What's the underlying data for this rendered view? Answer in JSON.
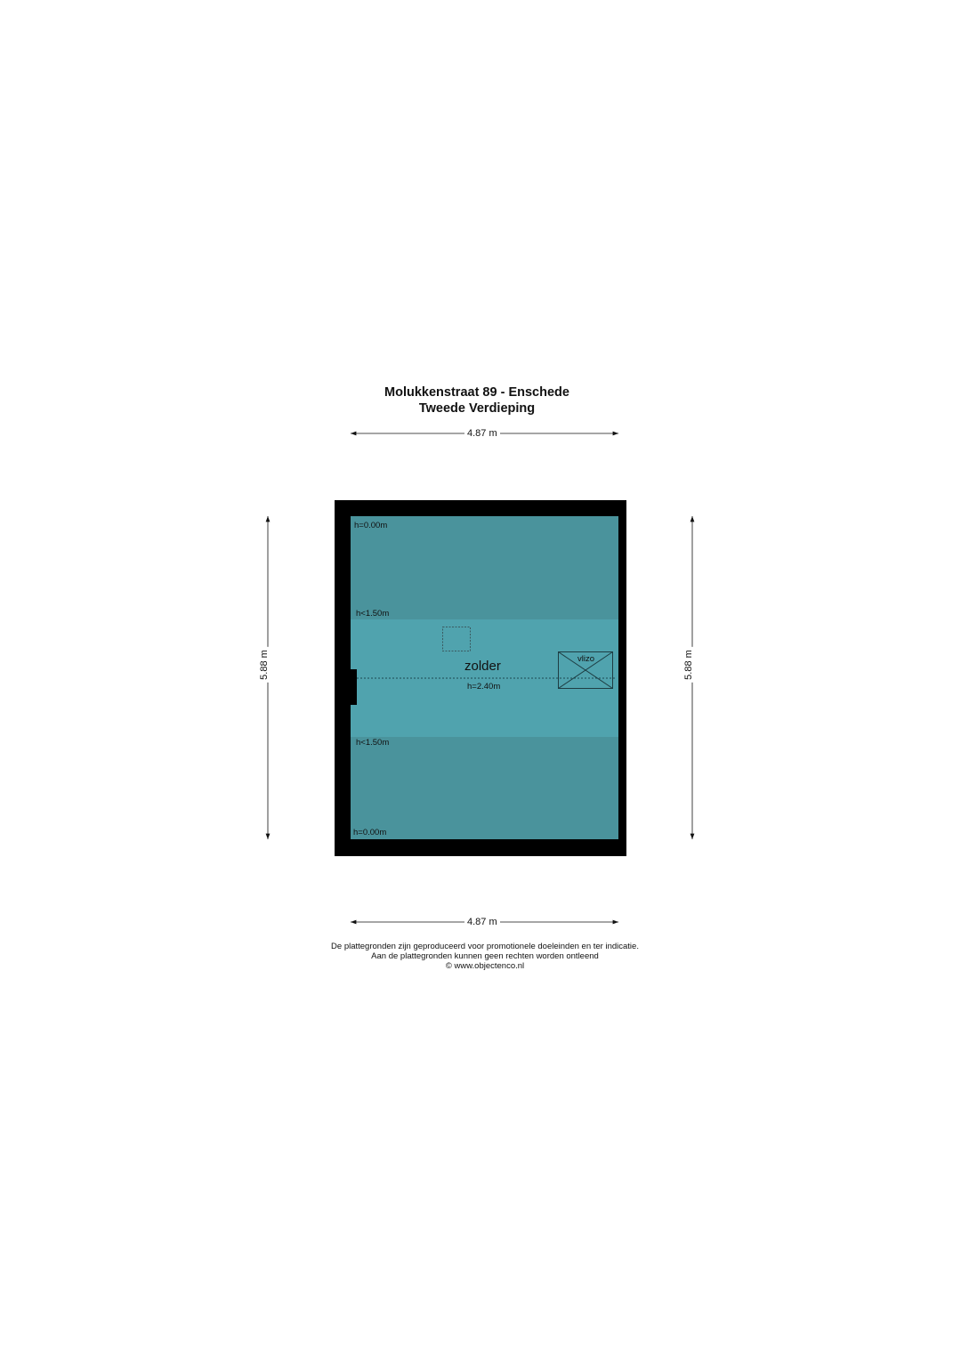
{
  "header": {
    "title": "Molukkenstraat 89 - Enschede",
    "subtitle": "Tweede Verdieping"
  },
  "dimensions": {
    "top": "4.87 m",
    "bottom": "4.87 m",
    "left": "5.88 m",
    "right": "5.88 m"
  },
  "plan": {
    "room_name": "zolder",
    "room_height": "h=2.40m",
    "height_top_edge": "h=0.00m",
    "height_top_limit": "h<1.50m",
    "height_bottom_limit": "h<1.50m",
    "height_bottom_edge": "h=0.00m",
    "hatch_label": "vlizo",
    "colors": {
      "wall": "#000000",
      "low_zone": "#4a939c",
      "high_zone": "#50a3ae"
    }
  },
  "footer": {
    "line1": "De plattegronden zijn geproduceerd voor promotionele doeleinden en ter indicatie.",
    "line2": "Aan de plattegronden kunnen geen rechten worden ontleend",
    "line3": "© www.objectenco.nl"
  }
}
